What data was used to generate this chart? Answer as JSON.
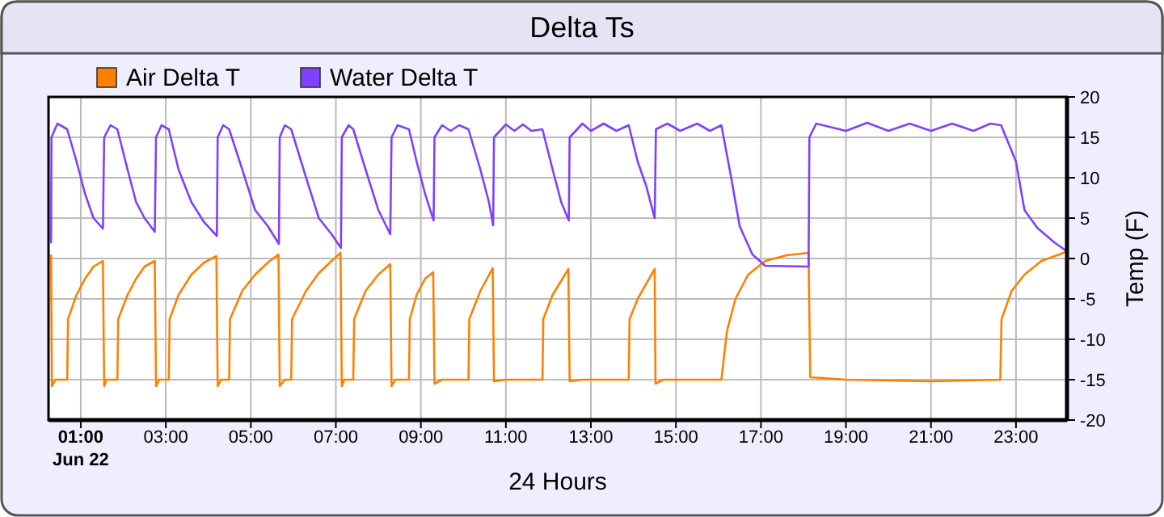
{
  "chart_data": {
    "type": "line",
    "title": "Delta Ts",
    "xlabel": "24 Hours",
    "ylabel": "Temp (F)",
    "xlim": [
      0.24,
      24.2
    ],
    "ylim": [
      -20,
      20
    ],
    "xticks": [
      {
        "value": 1,
        "label": "01:00\nJun 22"
      },
      {
        "value": 3,
        "label": "03:00"
      },
      {
        "value": 5,
        "label": "05:00"
      },
      {
        "value": 7,
        "label": "07:00"
      },
      {
        "value": 9,
        "label": "09:00"
      },
      {
        "value": 11,
        "label": "11:00"
      },
      {
        "value": 13,
        "label": "13:00"
      },
      {
        "value": 15,
        "label": "15:00"
      },
      {
        "value": 17,
        "label": "17:00"
      },
      {
        "value": 19,
        "label": "19:00"
      },
      {
        "value": 21,
        "label": "21:00"
      },
      {
        "value": 23,
        "label": "23:00"
      }
    ],
    "yticks": [
      -20,
      -15,
      -10,
      -5,
      0,
      5,
      10,
      15,
      20
    ],
    "grid": true,
    "legend": "top left",
    "marker": "none",
    "line_style": "solid",
    "series": [
      {
        "name": "Air Delta T",
        "color": "#ff8000",
        "x": [
          0.3,
          0.32,
          0.4,
          0.68,
          0.7,
          0.9,
          1.1,
          1.3,
          1.52,
          1.55,
          1.6,
          1.86,
          1.88,
          2.1,
          2.3,
          2.5,
          2.74,
          2.77,
          2.85,
          3.07,
          3.09,
          3.3,
          3.6,
          3.9,
          4.19,
          4.22,
          4.3,
          4.49,
          4.51,
          4.8,
          5.1,
          5.4,
          5.65,
          5.68,
          5.8,
          5.95,
          5.97,
          6.3,
          6.6,
          6.9,
          7.11,
          7.14,
          7.2,
          7.41,
          7.43,
          7.7,
          8.0,
          8.28,
          8.31,
          8.4,
          8.72,
          8.74,
          8.9,
          9.1,
          9.29,
          9.32,
          9.5,
          10.12,
          10.14,
          10.4,
          10.69,
          10.72,
          11.0,
          11.86,
          11.88,
          12.1,
          12.47,
          12.5,
          12.8,
          13.89,
          13.91,
          14.1,
          14.5,
          14.52,
          14.7,
          16.07,
          16.2,
          16.4,
          16.7,
          17.1,
          17.6,
          18.12,
          18.16,
          19,
          21,
          22.63,
          22.66,
          22.9,
          23.2,
          23.6,
          24.17
        ],
        "values": [
          0.4,
          -15.8,
          -15,
          -15,
          -7.5,
          -4.5,
          -2.5,
          -1,
          -0.3,
          -15.8,
          -15,
          -15,
          -7.5,
          -4.5,
          -2.5,
          -1,
          -0.3,
          -15.8,
          -15,
          -15,
          -7.5,
          -4.5,
          -2,
          -0.5,
          0.3,
          -15.8,
          -15,
          -15,
          -7.5,
          -4,
          -2,
          -0.5,
          0.5,
          -15.8,
          -15,
          -15,
          -7.5,
          -4,
          -1.8,
          -0.3,
          0.7,
          -15.8,
          -15,
          -15,
          -7.5,
          -4,
          -2,
          -0.7,
          -15.8,
          -15,
          -15,
          -7.5,
          -4.5,
          -2.5,
          -1.7,
          -15.5,
          -15,
          -15,
          -7.5,
          -4,
          -1.2,
          -15.2,
          -15,
          -15,
          -7.5,
          -4.5,
          -1.3,
          -15.2,
          -15,
          -15,
          -7.5,
          -5,
          -1.3,
          -15.5,
          -15,
          -15,
          -9,
          -5,
          -2,
          -0.3,
          0.4,
          0.7,
          -14.7,
          -15,
          -15.2,
          -15,
          -7.5,
          -4,
          -2,
          -0.3,
          0.8
        ]
      },
      {
        "name": "Water Delta T",
        "color": "#8040ff",
        "x": [
          0.3,
          0.31,
          0.45,
          0.68,
          0.9,
          1.1,
          1.3,
          1.52,
          1.55,
          1.7,
          1.86,
          2.1,
          2.3,
          2.5,
          2.74,
          2.77,
          2.9,
          3.07,
          3.3,
          3.6,
          3.9,
          4.2,
          4.22,
          4.35,
          4.49,
          4.8,
          5.1,
          5.4,
          5.66,
          5.68,
          5.8,
          5.95,
          6.3,
          6.6,
          6.9,
          7.12,
          7.14,
          7.3,
          7.41,
          7.7,
          8.0,
          8.28,
          8.31,
          8.45,
          8.72,
          8.9,
          9.1,
          9.3,
          9.32,
          9.5,
          9.7,
          9.9,
          10.12,
          10.4,
          10.6,
          10.7,
          10.72,
          11.0,
          11.2,
          11.4,
          11.6,
          11.86,
          12.1,
          12.3,
          12.48,
          12.5,
          12.8,
          13.0,
          13.3,
          13.6,
          13.89,
          14.1,
          14.3,
          14.5,
          14.53,
          14.8,
          15.1,
          15.5,
          15.8,
          16.07,
          16.3,
          16.5,
          16.8,
          17.1,
          18.12,
          18.14,
          18.3,
          19,
          19.5,
          20,
          20.5,
          21,
          21.5,
          22,
          22.4,
          22.65,
          23.0,
          23.2,
          23.5,
          23.9,
          24.17
        ],
        "values": [
          2,
          15,
          16.7,
          16,
          12,
          8,
          5,
          3.7,
          15,
          16.5,
          16,
          11,
          7,
          5,
          3.3,
          15,
          16.5,
          16,
          11,
          7,
          4.5,
          2.8,
          15,
          16.5,
          16,
          11,
          6,
          4,
          1.8,
          15,
          16.5,
          16,
          10,
          5,
          3,
          1.3,
          15,
          16.5,
          16,
          11,
          6,
          3,
          15,
          16.5,
          16,
          12,
          8,
          4.7,
          15,
          16.5,
          15.8,
          16.5,
          16,
          11,
          7,
          4.1,
          15,
          16.6,
          15.8,
          16.6,
          15.8,
          16,
          11,
          7,
          4.7,
          15,
          16.7,
          15.8,
          16.7,
          15.8,
          16.5,
          12,
          9,
          5,
          16,
          16.7,
          15.8,
          16.7,
          15.8,
          16.5,
          10,
          4,
          0.5,
          -0.9,
          -1,
          15,
          16.7,
          15.8,
          16.8,
          15.8,
          16.7,
          15.8,
          16.7,
          15.8,
          16.7,
          16.5,
          12,
          6,
          3.8,
          2,
          1
        ]
      }
    ]
  }
}
